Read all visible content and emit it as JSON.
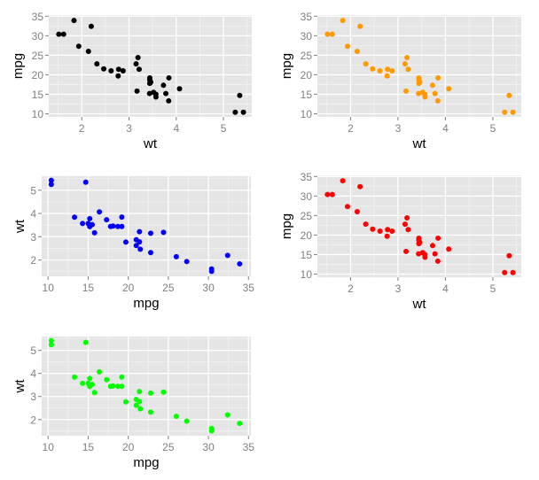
{
  "chart_data": [
    {
      "type": "scatter",
      "panel": "top-left",
      "title": "",
      "xlabel": "wt",
      "ylabel": "mpg",
      "x_var": "wt",
      "y_var": "mpg",
      "point_color": "#000000",
      "xlim": [
        1.3,
        5.6
      ],
      "ylim": [
        9.2,
        35.3
      ],
      "xticks": [
        2,
        3,
        4,
        5
      ],
      "yticks": [
        10,
        15,
        20,
        25,
        30,
        35
      ],
      "grid": true
    },
    {
      "type": "scatter",
      "panel": "top-right",
      "title": "",
      "xlabel": "wt",
      "ylabel": "mpg",
      "x_var": "wt",
      "y_var": "mpg",
      "point_color": "#FF9900",
      "xlim": [
        1.3,
        5.6
      ],
      "ylim": [
        9.2,
        35.3
      ],
      "xticks": [
        2,
        3,
        4,
        5
      ],
      "yticks": [
        10,
        15,
        20,
        25,
        30,
        35
      ],
      "grid": true
    },
    {
      "type": "scatter",
      "panel": "middle-left",
      "title": "",
      "xlabel": "mpg",
      "ylabel": "wt",
      "x_var": "mpg",
      "y_var": "wt",
      "point_color": "#0000FF",
      "xlim": [
        9.2,
        35.3
      ],
      "ylim": [
        1.3,
        5.6
      ],
      "xticks": [
        10,
        15,
        20,
        25,
        30,
        35
      ],
      "yticks": [
        2,
        3,
        4,
        5
      ],
      "grid": true
    },
    {
      "type": "scatter",
      "panel": "middle-right",
      "title": "",
      "xlabel": "wt",
      "ylabel": "mpg",
      "x_var": "wt",
      "y_var": "mpg",
      "point_color": "#FF0000",
      "xlim": [
        1.3,
        5.6
      ],
      "ylim": [
        9.2,
        35.3
      ],
      "xticks": [
        2,
        3,
        4,
        5
      ],
      "yticks": [
        10,
        15,
        20,
        25,
        30,
        35
      ],
      "grid": true
    },
    {
      "type": "scatter",
      "panel": "bottom-left",
      "title": "",
      "xlabel": "mpg",
      "ylabel": "wt",
      "x_var": "mpg",
      "y_var": "wt",
      "point_color": "#00FF00",
      "xlim": [
        9.2,
        35.3
      ],
      "ylim": [
        1.3,
        5.6
      ],
      "xticks": [
        10,
        15,
        20,
        25,
        30,
        35
      ],
      "yticks": [
        2,
        3,
        4,
        5
      ],
      "grid": true
    }
  ],
  "dataset": {
    "wt": [
      2.62,
      2.875,
      2.32,
      3.215,
      3.44,
      3.46,
      3.57,
      3.19,
      3.15,
      3.44,
      3.44,
      4.07,
      3.73,
      3.78,
      5.25,
      5.424,
      5.345,
      2.2,
      1.615,
      1.835,
      2.465,
      3.52,
      3.435,
      3.84,
      3.845,
      1.935,
      2.14,
      1.513,
      3.17,
      2.77,
      3.57,
      2.78
    ],
    "mpg": [
      21.0,
      21.0,
      22.8,
      21.4,
      18.7,
      18.1,
      14.3,
      24.4,
      22.8,
      19.2,
      17.8,
      16.4,
      17.3,
      15.2,
      10.4,
      10.4,
      14.7,
      32.4,
      30.4,
      33.9,
      21.5,
      15.5,
      15.2,
      13.3,
      19.2,
      27.3,
      26.0,
      30.4,
      15.8,
      19.7,
      15.0,
      21.4
    ]
  },
  "style": {
    "panel_background": "#E5E5E5",
    "grid_major": "#FFFFFF",
    "grid_minor": "#F2F2F2",
    "tick_color": "#7F7F7F"
  }
}
